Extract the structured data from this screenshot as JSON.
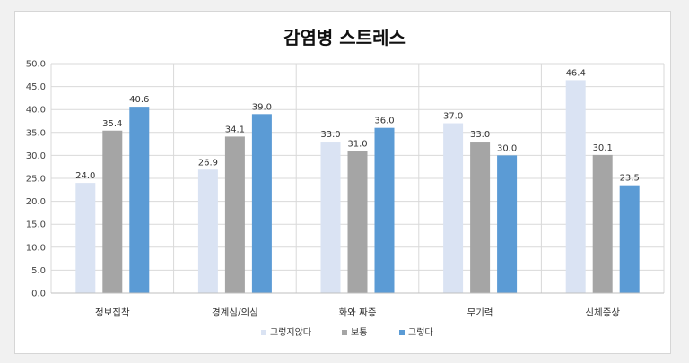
{
  "chart_data": {
    "type": "bar",
    "title": "감염병 스트레스",
    "categories": [
      "정보집착",
      "경계심/의심",
      "화와 짜증",
      "무기력",
      "신체증상"
    ],
    "series": [
      {
        "name": "그렇지않다",
        "color": "#dae3f3",
        "values": [
          24.0,
          26.9,
          33.0,
          37.0,
          46.4
        ]
      },
      {
        "name": "보통",
        "color": "#a5a5a5",
        "values": [
          35.4,
          34.1,
          31.0,
          33.0,
          30.1
        ]
      },
      {
        "name": "그렇다",
        "color": "#5b9bd5",
        "values": [
          40.6,
          39.0,
          36.0,
          30.0,
          23.5
        ]
      }
    ],
    "yticks": [
      "0.0",
      "5.0",
      "10.0",
      "15.0",
      "20.0",
      "25.0",
      "30.0",
      "35.0",
      "40.0",
      "45.0",
      "50.0"
    ],
    "ylim": [
      0,
      50
    ],
    "grid": true,
    "legend": "bottom"
  }
}
